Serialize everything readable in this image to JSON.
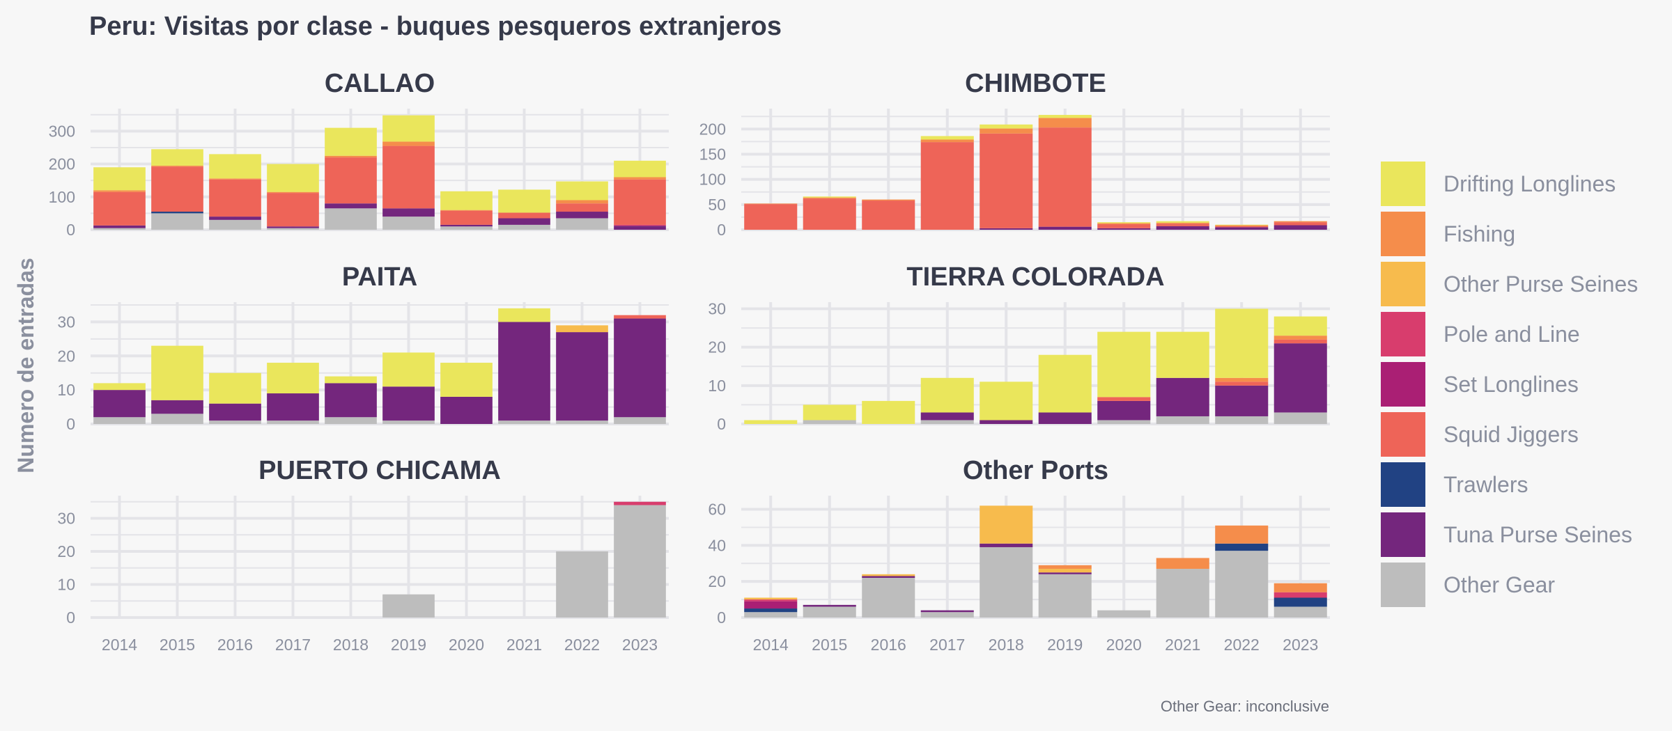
{
  "title": "Peru: Visitas por clase - buques pesqueros extranjeros",
  "ylabel": "Numero de entradas",
  "caption": "Other Gear: inconclusive",
  "legend": [
    {
      "name": "Drifting Longlines",
      "color": "#eae65c"
    },
    {
      "name": "Fishing",
      "color": "#f58d4b"
    },
    {
      "name": "Other Purse Seines",
      "color": "#f7bb4d"
    },
    {
      "name": "Pole and Line",
      "color": "#d83d6d"
    },
    {
      "name": "Set Longlines",
      "color": "#aa1f74"
    },
    {
      "name": "Squid Jiggers",
      "color": "#ee6458"
    },
    {
      "name": "Trawlers",
      "color": "#214283"
    },
    {
      "name": "Tuna Purse Seines",
      "color": "#74267d"
    },
    {
      "name": "Other Gear",
      "color": "#bdbdbd"
    }
  ],
  "chart_data": {
    "type": "bar",
    "stacked": true,
    "grid": true,
    "legend_position": "right",
    "x": [
      "2014",
      "2015",
      "2016",
      "2017",
      "2018",
      "2019",
      "2020",
      "2021",
      "2022",
      "2023"
    ],
    "stack_order": [
      "Other Gear",
      "Trawlers",
      "Tuna Purse Seines",
      "Set Longlines",
      "Pole and Line",
      "Squid Jiggers",
      "Other Purse Seines",
      "Fishing",
      "Drifting Longlines"
    ],
    "panels": [
      {
        "name": "CALLAO",
        "ylim": [
          0,
          360
        ],
        "yticks": [
          0,
          100,
          200,
          300
        ],
        "series": {
          "Other Gear": [
            5,
            50,
            30,
            5,
            65,
            40,
            10,
            15,
            35,
            0
          ],
          "Trawlers": [
            0,
            5,
            0,
            0,
            0,
            0,
            0,
            0,
            0,
            0
          ],
          "Tuna Purse Seines": [
            8,
            0,
            10,
            5,
            15,
            25,
            5,
            20,
            20,
            12
          ],
          "Set Longlines": [
            0,
            0,
            0,
            0,
            0,
            0,
            0,
            0,
            0,
            0
          ],
          "Pole and Line": [
            0,
            0,
            0,
            0,
            0,
            0,
            0,
            0,
            0,
            3
          ],
          "Squid Jiggers": [
            102,
            137,
            113,
            102,
            140,
            190,
            43,
            17,
            25,
            138
          ],
          "Other Purse Seines": [
            0,
            0,
            0,
            0,
            0,
            0,
            0,
            0,
            0,
            0
          ],
          "Fishing": [
            5,
            3,
            3,
            3,
            5,
            13,
            2,
            0,
            10,
            7
          ],
          "Drifting Longlines": [
            70,
            50,
            74,
            85,
            85,
            80,
            57,
            70,
            57,
            50
          ]
        }
      },
      {
        "name": "CHIMBOTE",
        "ylim": [
          0,
          235
        ],
        "yticks": [
          0,
          50,
          100,
          150,
          200
        ],
        "series": {
          "Other Gear": [
            0,
            0,
            0,
            0,
            0,
            0,
            0,
            0,
            0,
            0
          ],
          "Trawlers": [
            0,
            0,
            0,
            0,
            0,
            0,
            0,
            0,
            0,
            0
          ],
          "Tuna Purse Seines": [
            0,
            0,
            0,
            0,
            3,
            6,
            3,
            7,
            5,
            9
          ],
          "Set Longlines": [
            0,
            0,
            0,
            0,
            0,
            0,
            0,
            0,
            0,
            0
          ],
          "Pole and Line": [
            0,
            0,
            0,
            0,
            0,
            0,
            0,
            0,
            0,
            0
          ],
          "Squid Jiggers": [
            51,
            62,
            58,
            174,
            188,
            197,
            8,
            5,
            2,
            6
          ],
          "Other Purse Seines": [
            0,
            0,
            0,
            0,
            0,
            0,
            0,
            0,
            0,
            0
          ],
          "Fishing": [
            1,
            2,
            2,
            5,
            10,
            19,
            2,
            2,
            2,
            2
          ],
          "Drifting Longlines": [
            0,
            2,
            0,
            7,
            8,
            6,
            2,
            3,
            1,
            0
          ]
        }
      },
      {
        "name": "PAITA",
        "ylim": [
          0,
          35
        ],
        "yticks": [
          0,
          10,
          20,
          30
        ],
        "series": {
          "Other Gear": [
            2,
            3,
            1,
            1,
            2,
            1,
            0,
            1,
            1,
            2
          ],
          "Trawlers": [
            0,
            0,
            0,
            0,
            0,
            0,
            0,
            0,
            0,
            0
          ],
          "Tuna Purse Seines": [
            8,
            4,
            5,
            8,
            10,
            10,
            8,
            29,
            26,
            29
          ],
          "Set Longlines": [
            0,
            0,
            0,
            0,
            0,
            0,
            0,
            0,
            0,
            0
          ],
          "Pole and Line": [
            0,
            0,
            0,
            0,
            0,
            0,
            0,
            0,
            0,
            0
          ],
          "Squid Jiggers": [
            0,
            0,
            0,
            0,
            0,
            0,
            0,
            0,
            0,
            1
          ],
          "Other Purse Seines": [
            0,
            0,
            0,
            0,
            0,
            0,
            0,
            0,
            2,
            0
          ],
          "Fishing": [
            0,
            0,
            0,
            0,
            0,
            0,
            0,
            0,
            0,
            0
          ],
          "Drifting Longlines": [
            2,
            16,
            9,
            9,
            2,
            10,
            10,
            4,
            0,
            0
          ]
        }
      },
      {
        "name": "TIERRA COLORADA",
        "ylim": [
          0,
          31
        ],
        "yticks": [
          0,
          10,
          20,
          30
        ],
        "series": {
          "Other Gear": [
            0,
            1,
            0,
            1,
            0,
            0,
            1,
            2,
            2,
            3
          ],
          "Trawlers": [
            0,
            0,
            0,
            0,
            0,
            0,
            0,
            0,
            0,
            0
          ],
          "Tuna Purse Seines": [
            0,
            0,
            0,
            2,
            1,
            3,
            5,
            10,
            8,
            18
          ],
          "Set Longlines": [
            0,
            0,
            0,
            0,
            0,
            0,
            0,
            0,
            0,
            0
          ],
          "Pole and Line": [
            0,
            0,
            0,
            0,
            0,
            0,
            0,
            0,
            0,
            0
          ],
          "Squid Jiggers": [
            0,
            0,
            0,
            0,
            0,
            0,
            1,
            0,
            1,
            1
          ],
          "Other Purse Seines": [
            0,
            0,
            0,
            0,
            0,
            0,
            0,
            0,
            0,
            0
          ],
          "Fishing": [
            0,
            0,
            0,
            0,
            0,
            0,
            0,
            0,
            1,
            1
          ],
          "Drifting Longlines": [
            1,
            4,
            6,
            9,
            10,
            15,
            17,
            12,
            18,
            5
          ]
        }
      },
      {
        "name": "PUERTO CHICAMA",
        "ylim": [
          0,
          36
        ],
        "yticks": [
          0,
          10,
          20,
          30
        ],
        "series": {
          "Other Gear": [
            0,
            0,
            0,
            0,
            0,
            7,
            0,
            0,
            20,
            34
          ],
          "Trawlers": [
            0,
            0,
            0,
            0,
            0,
            0,
            0,
            0,
            0,
            0
          ],
          "Tuna Purse Seines": [
            0,
            0,
            0,
            0,
            0,
            0,
            0,
            0,
            0,
            0
          ],
          "Set Longlines": [
            0,
            0,
            0,
            0,
            0,
            0,
            0,
            0,
            0,
            0
          ],
          "Pole and Line": [
            0,
            0,
            0,
            0,
            0,
            0,
            0,
            0,
            0,
            1
          ],
          "Squid Jiggers": [
            0,
            0,
            0,
            0,
            0,
            0,
            0,
            0,
            0,
            0
          ],
          "Other Purse Seines": [
            0,
            0,
            0,
            0,
            0,
            0,
            0,
            0,
            0,
            0
          ],
          "Fishing": [
            0,
            0,
            0,
            0,
            0,
            0,
            0,
            0,
            0,
            0
          ],
          "Drifting Longlines": [
            0,
            0,
            0,
            0,
            0,
            0,
            0,
            0,
            0,
            0
          ]
        }
      },
      {
        "name": "Other Ports",
        "ylim": [
          0,
          66
        ],
        "yticks": [
          0,
          20,
          40,
          60
        ],
        "series": {
          "Other Gear": [
            3,
            6,
            22,
            3,
            39,
            24,
            4,
            27,
            37,
            6
          ],
          "Trawlers": [
            2,
            0,
            0,
            0,
            0,
            0,
            0,
            0,
            4,
            5
          ],
          "Tuna Purse Seines": [
            0,
            1,
            1,
            1,
            2,
            1,
            0,
            0,
            0,
            0
          ],
          "Set Longlines": [
            4,
            0,
            0,
            0,
            0,
            0,
            0,
            0,
            0,
            0
          ],
          "Pole and Line": [
            1,
            0,
            0,
            0,
            0,
            0,
            0,
            0,
            0,
            3
          ],
          "Squid Jiggers": [
            0,
            0,
            0,
            0,
            0,
            0,
            0,
            0,
            0,
            0
          ],
          "Other Purse Seines": [
            1,
            0,
            1,
            0,
            21,
            2,
            0,
            0,
            0,
            0
          ],
          "Fishing": [
            0,
            0,
            0,
            0,
            0,
            2,
            0,
            6,
            10,
            5
          ],
          "Drifting Longlines": [
            0,
            0,
            0,
            0,
            0,
            0,
            0,
            0,
            0,
            0
          ]
        }
      }
    ]
  }
}
